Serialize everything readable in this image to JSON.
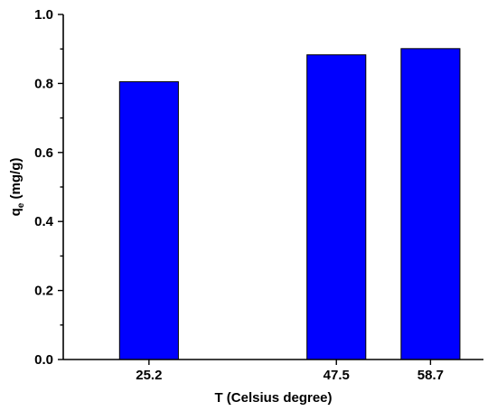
{
  "chart_data": {
    "type": "bar",
    "x": [
      25.2,
      47.5,
      58.7
    ],
    "tick_labels": [
      "25.2",
      "47.5",
      "58.7"
    ],
    "values": [
      0.805,
      0.883,
      0.901
    ],
    "title": "",
    "xlabel": "T (Celsius degree)",
    "ylabel_main": "q",
    "ylabel_sub": "e",
    "ylabel_rest": " (mg/g)",
    "ylim": [
      0.0,
      1.0
    ],
    "yticks": [
      "0.0",
      "0.2",
      "0.4",
      "0.6",
      "0.8",
      "1.0"
    ],
    "bar_color": "#0000ff",
    "grid": false,
    "legend": "none"
  }
}
